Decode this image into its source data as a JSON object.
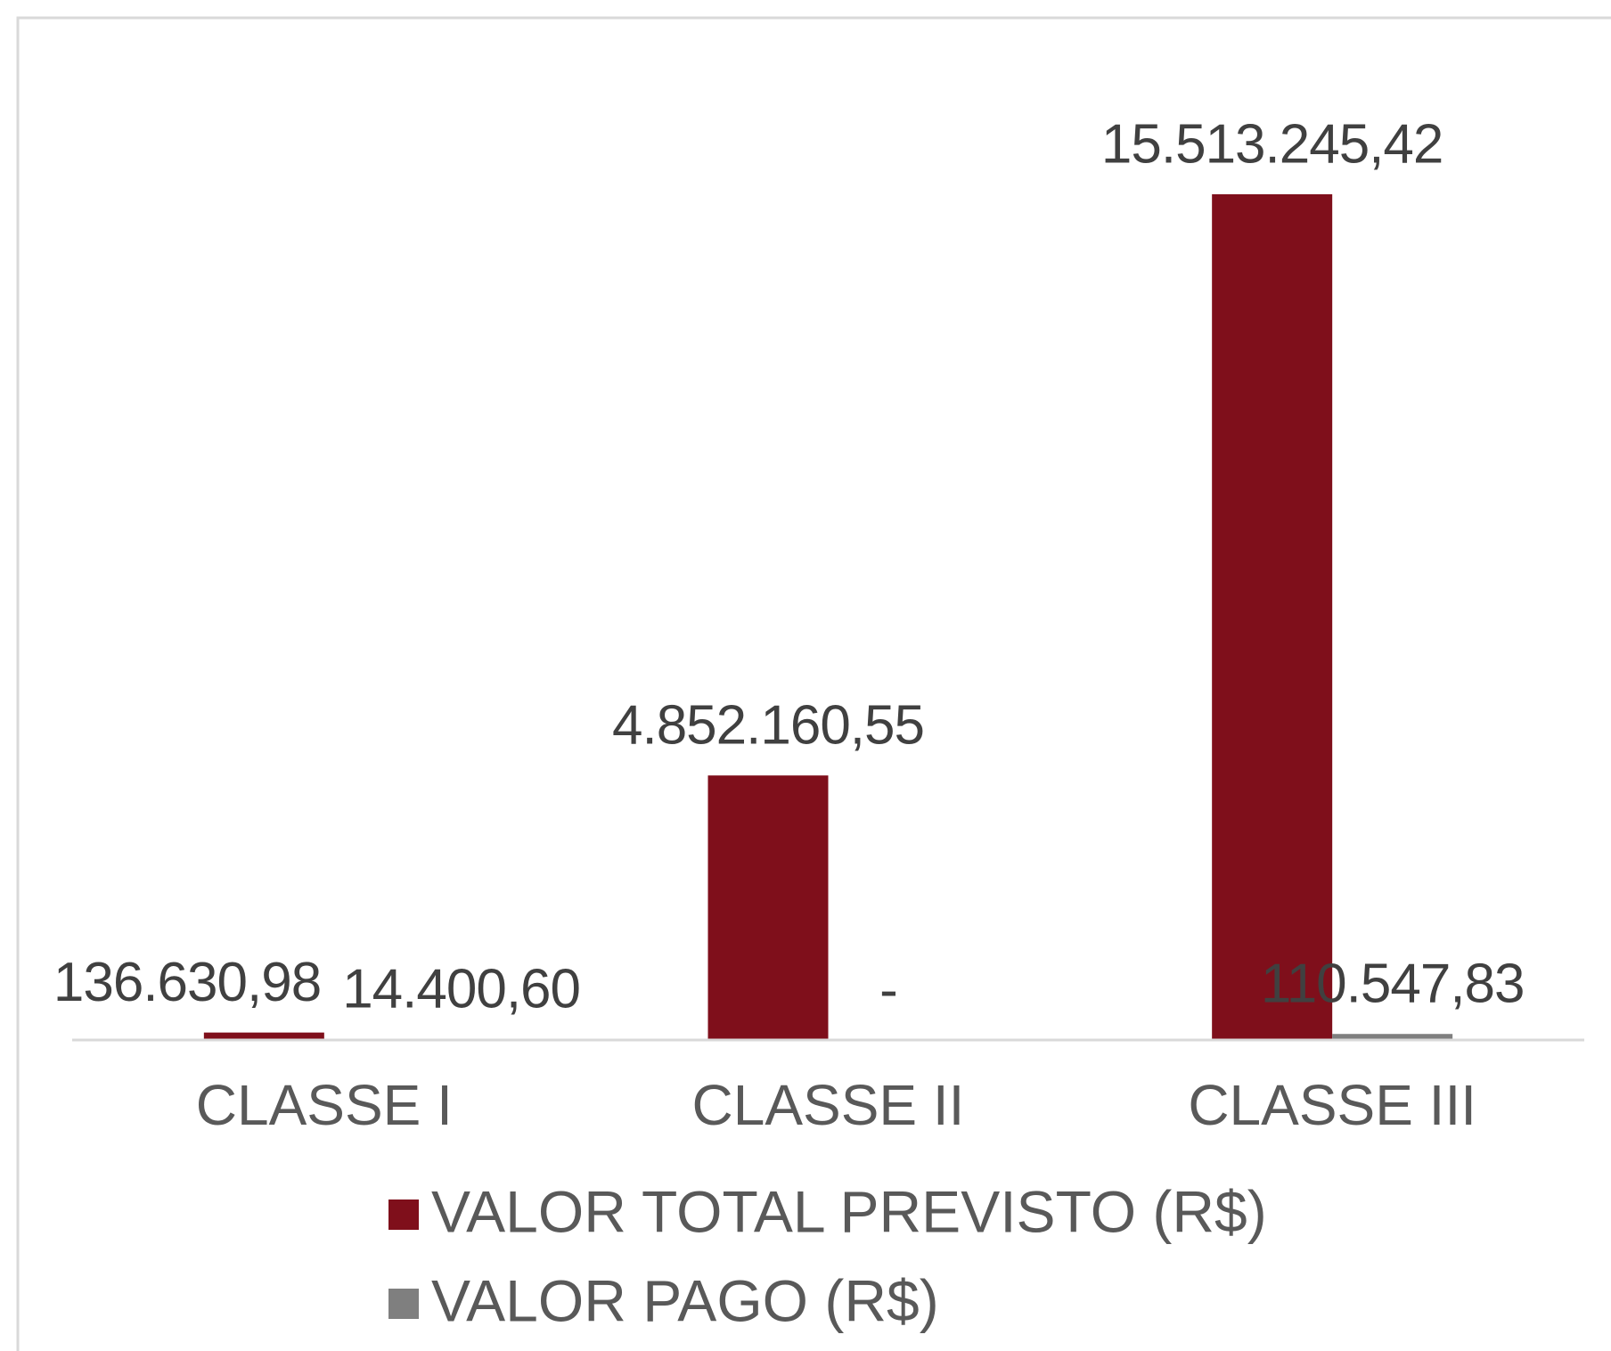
{
  "chart_data": {
    "type": "bar",
    "categories": [
      "CLASSE I",
      "CLASSE II",
      "CLASSE III"
    ],
    "series": [
      {
        "name": "VALOR TOTAL PREVISTO (R$)",
        "color": "#7f0f1b",
        "values": [
          136630.98,
          4852160.55,
          15513245.42
        ],
        "value_labels": [
          "136.630,98",
          "4.852.160,55",
          "15.513.245,42"
        ]
      },
      {
        "name": "VALOR PAGO (R$)",
        "color": "#7f7f7f",
        "values": [
          14400.6,
          0,
          110547.83
        ],
        "value_labels": [
          "14.400,60",
          "-",
          "110.547,83"
        ]
      }
    ],
    "legend": "bottom"
  }
}
